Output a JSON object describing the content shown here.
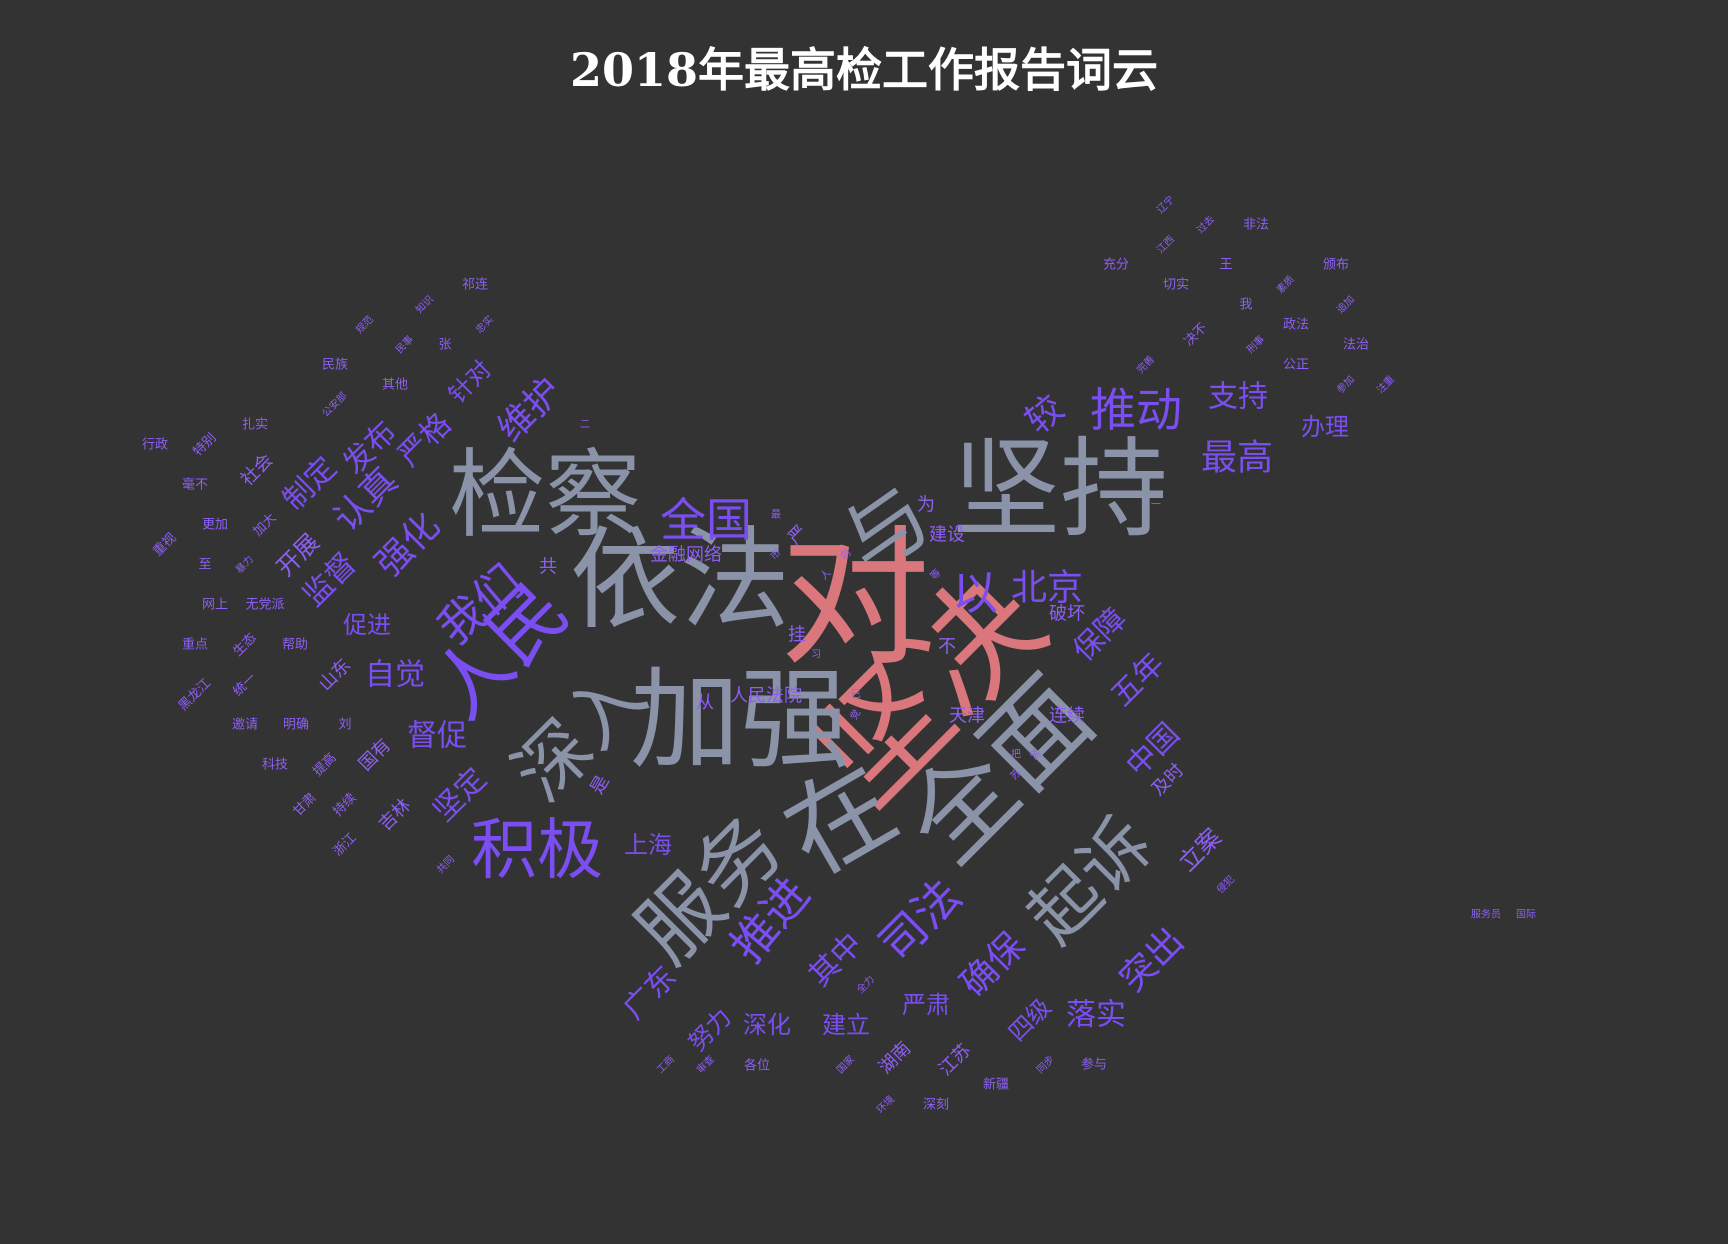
{
  "title": "2018年最高检工作报告词云",
  "colors": {
    "background": "#333333",
    "title": "#ffffff",
    "tier1": "#d9777d",
    "tier2": "#8b93a8",
    "tier3": "#7b4ef2",
    "tier4": "#8e5ff5"
  },
  "chart_data": {
    "type": "wordcloud",
    "title": "2018年最高检工作报告词云",
    "words": [
      {
        "text": "对",
        "weight": 100,
        "color": "#d9777d"
      },
      {
        "text": "坚决",
        "weight": 96,
        "color": "#d9777d"
      },
      {
        "text": "依法",
        "weight": 88,
        "color": "#8b93a8"
      },
      {
        "text": "坚持",
        "weight": 86,
        "color": "#8b93a8"
      },
      {
        "text": "加强",
        "weight": 85,
        "color": "#8b93a8"
      },
      {
        "text": "在",
        "weight": 83,
        "color": "#8b93a8"
      },
      {
        "text": "全面",
        "weight": 80,
        "color": "#8b93a8"
      },
      {
        "text": "检察",
        "weight": 76,
        "color": "#8b93a8"
      },
      {
        "text": "服务",
        "weight": 68,
        "color": "#8b93a8"
      },
      {
        "text": "与",
        "weight": 66,
        "color": "#8b93a8"
      },
      {
        "text": "人民",
        "weight": 64,
        "color": "#7b4ef2"
      },
      {
        "text": "深入",
        "weight": 60,
        "color": "#8b93a8"
      },
      {
        "text": "起诉",
        "weight": 58,
        "color": "#8b93a8"
      },
      {
        "text": "积极",
        "weight": 55,
        "color": "#7b4ef2"
      },
      {
        "text": "推进",
        "weight": 46,
        "color": "#7b4ef2"
      },
      {
        "text": "全国",
        "weight": 46,
        "color": "#7b4ef2"
      },
      {
        "text": "推动",
        "weight": 44,
        "color": "#7b4ef2"
      },
      {
        "text": "以",
        "weight": 44,
        "color": "#7b4ef2"
      },
      {
        "text": "司法",
        "weight": 42,
        "color": "#7b4ef2"
      },
      {
        "text": "我们",
        "weight": 40,
        "color": "#7b4ef2"
      },
      {
        "text": "确保",
        "weight": 38,
        "color": "#7b4ef2"
      },
      {
        "text": "突出",
        "weight": 36,
        "color": "#7b4ef2"
      },
      {
        "text": "强化",
        "weight": 36,
        "color": "#7b4ef2"
      },
      {
        "text": "认真",
        "weight": 35,
        "color": "#7b4ef2"
      },
      {
        "text": "最高",
        "weight": 35,
        "color": "#7b4ef2"
      },
      {
        "text": "维护",
        "weight": 34,
        "color": "#7b4ef2"
      },
      {
        "text": "北京",
        "weight": 33,
        "color": "#7b4ef2"
      },
      {
        "text": "较",
        "weight": 33,
        "color": "#7b4ef2"
      },
      {
        "text": "保障",
        "weight": 30,
        "color": "#7b4ef2"
      },
      {
        "text": "五年",
        "weight": 30,
        "color": "#7b4ef2"
      },
      {
        "text": "中国",
        "weight": 28,
        "color": "#7b4ef2"
      },
      {
        "text": "支持",
        "weight": 28,
        "color": "#7b4ef2"
      },
      {
        "text": "坚定",
        "weight": 28,
        "color": "#7b4ef2"
      },
      {
        "text": "督促",
        "weight": 28,
        "color": "#7b4ef2"
      },
      {
        "text": "落实",
        "weight": 28,
        "color": "#7b4ef2"
      },
      {
        "text": "广东",
        "weight": 28,
        "color": "#7b4ef2"
      },
      {
        "text": "其中",
        "weight": 27,
        "color": "#7b4ef2"
      },
      {
        "text": "自觉",
        "weight": 27,
        "color": "#7b4ef2"
      },
      {
        "text": "监督",
        "weight": 26,
        "color": "#7b4ef2"
      },
      {
        "text": "发布",
        "weight": 26,
        "color": "#7b4ef2"
      },
      {
        "text": "严格",
        "weight": 26,
        "color": "#7b4ef2"
      },
      {
        "text": "制定",
        "weight": 25,
        "color": "#7b4ef2"
      },
      {
        "text": "针对",
        "weight": 24,
        "color": "#7b4ef2"
      },
      {
        "text": "严肃",
        "weight": 24,
        "color": "#7b4ef2"
      },
      {
        "text": "四级",
        "weight": 24,
        "color": "#7b4ef2"
      },
      {
        "text": "努力",
        "weight": 24,
        "color": "#7b4ef2"
      },
      {
        "text": "深化",
        "weight": 23,
        "color": "#7b4ef2"
      },
      {
        "text": "建立",
        "weight": 23,
        "color": "#7b4ef2"
      },
      {
        "text": "促进",
        "weight": 23,
        "color": "#7b4ef2"
      },
      {
        "text": "办理",
        "weight": 22,
        "color": "#7b4ef2"
      },
      {
        "text": "上海",
        "weight": 22,
        "color": "#7b4ef2"
      },
      {
        "text": "开展",
        "weight": 20,
        "color": "#8e5ff5"
      },
      {
        "text": "立案",
        "weight": 20,
        "color": "#8e5ff5"
      },
      {
        "text": "及时",
        "weight": 19,
        "color": "#8e5ff5"
      },
      {
        "text": "湖南",
        "weight": 19,
        "color": "#8e5ff5"
      },
      {
        "text": "江苏",
        "weight": 19,
        "color": "#8e5ff5"
      },
      {
        "text": "共",
        "weight": 19,
        "color": "#8e5ff5"
      },
      {
        "text": "为",
        "weight": 19,
        "color": "#8e5ff5"
      },
      {
        "text": "不",
        "weight": 19,
        "color": "#8e5ff5"
      },
      {
        "text": "严",
        "weight": 19,
        "color": "#8e5ff5"
      },
      {
        "text": "从",
        "weight": 18,
        "color": "#8e5ff5"
      },
      {
        "text": "连续",
        "weight": 18,
        "color": "#8e5ff5"
      },
      {
        "text": "天津",
        "weight": 18,
        "color": "#8e5ff5"
      },
      {
        "text": "破坏",
        "weight": 18,
        "color": "#8e5ff5"
      },
      {
        "text": "吉林",
        "weight": 18,
        "color": "#8e5ff5"
      },
      {
        "text": "国有",
        "weight": 17,
        "color": "#8e5ff5"
      },
      {
        "text": "挂",
        "weight": 17,
        "color": "#8e5ff5"
      },
      {
        "text": "是",
        "weight": 17,
        "color": "#8e5ff5"
      },
      {
        "text": "社会",
        "weight": 17,
        "color": "#8e5ff5"
      },
      {
        "text": "建设",
        "weight": 16,
        "color": "#8e5ff5"
      },
      {
        "text": "金融网络",
        "weight": 16,
        "color": "#8e5ff5"
      },
      {
        "text": "人民法院",
        "weight": 15,
        "color": "#8e5ff5"
      },
      {
        "text": "山东",
        "weight": 15,
        "color": "#8e5ff5"
      },
      {
        "text": "各位",
        "weight": 13,
        "color": "#8e5ff5"
      },
      {
        "text": "新疆",
        "weight": 13,
        "color": "#8e5ff5"
      },
      {
        "text": "深刻",
        "weight": 13,
        "color": "#8e5ff5"
      },
      {
        "text": "参与",
        "weight": 13,
        "color": "#8e5ff5"
      },
      {
        "text": "明确",
        "weight": 13,
        "color": "#8e5ff5"
      },
      {
        "text": "无党派",
        "weight": 12,
        "color": "#8e5ff5"
      },
      {
        "text": "公正",
        "weight": 12,
        "color": "#8e5ff5"
      },
      {
        "text": "政法",
        "weight": 12,
        "color": "#8e5ff5"
      },
      {
        "text": "法治",
        "weight": 12,
        "color": "#8e5ff5"
      },
      {
        "text": "充分",
        "weight": 12,
        "color": "#8e5ff5"
      },
      {
        "text": "切实",
        "weight": 12,
        "color": "#8e5ff5"
      },
      {
        "text": "非法",
        "weight": 12,
        "color": "#8e5ff5"
      },
      {
        "text": "颁布",
        "weight": 12,
        "color": "#8e5ff5"
      },
      {
        "text": "决不",
        "weight": 12,
        "color": "#8e5ff5"
      },
      {
        "text": "祁连",
        "weight": 12,
        "color": "#8e5ff5"
      },
      {
        "text": "民族",
        "weight": 12,
        "color": "#8e5ff5"
      },
      {
        "text": "其他",
        "weight": 12,
        "color": "#8e5ff5"
      },
      {
        "text": "扎实",
        "weight": 12,
        "color": "#8e5ff5"
      },
      {
        "text": "行政",
        "weight": 12,
        "color": "#8e5ff5"
      },
      {
        "text": "特别",
        "weight": 12,
        "color": "#8e5ff5"
      },
      {
        "text": "毫不",
        "weight": 12,
        "color": "#8e5ff5"
      },
      {
        "text": "更加",
        "weight": 12,
        "color": "#8e5ff5"
      },
      {
        "text": "加大",
        "weight": 12,
        "color": "#8e5ff5"
      },
      {
        "text": "重视",
        "weight": 12,
        "color": "#8e5ff5"
      },
      {
        "text": "至",
        "weight": 12,
        "color": "#8e5ff5"
      },
      {
        "text": "网上",
        "weight": 12,
        "color": "#8e5ff5"
      },
      {
        "text": "重点",
        "weight": 12,
        "color": "#8e5ff5"
      },
      {
        "text": "生态",
        "weight": 12,
        "color": "#8e5ff5"
      },
      {
        "text": "帮助",
        "weight": 12,
        "color": "#8e5ff5"
      },
      {
        "text": "黑龙江",
        "weight": 12,
        "color": "#8e5ff5"
      },
      {
        "text": "统一",
        "weight": 12,
        "color": "#8e5ff5"
      },
      {
        "text": "邀请",
        "weight": 12,
        "color": "#8e5ff5"
      },
      {
        "text": "科技",
        "weight": 12,
        "color": "#8e5ff5"
      },
      {
        "text": "提高",
        "weight": 12,
        "color": "#8e5ff5"
      },
      {
        "text": "甘肃",
        "weight": 12,
        "color": "#8e5ff5"
      },
      {
        "text": "持续",
        "weight": 12,
        "color": "#8e5ff5"
      },
      {
        "text": "浙江",
        "weight": 12,
        "color": "#8e5ff5"
      },
      {
        "text": "刘",
        "weight": 12,
        "color": "#8e5ff5"
      },
      {
        "text": "张",
        "weight": 12,
        "color": "#8e5ff5"
      },
      {
        "text": "王",
        "weight": 12,
        "color": "#8e5ff5"
      },
      {
        "text": "我",
        "weight": 12,
        "color": "#8e5ff5"
      },
      {
        "text": "辽宁",
        "weight": 11,
        "color": "#8e5ff5"
      },
      {
        "text": "江西",
        "weight": 11,
        "color": "#8e5ff5"
      },
      {
        "text": "过去",
        "weight": 11,
        "color": "#8e5ff5"
      },
      {
        "text": "追加",
        "weight": 11,
        "color": "#8e5ff5"
      },
      {
        "text": "参加",
        "weight": 11,
        "color": "#8e5ff5"
      },
      {
        "text": "注重",
        "weight": 11,
        "color": "#8e5ff5"
      },
      {
        "text": "刑事",
        "weight": 11,
        "color": "#8e5ff5"
      },
      {
        "text": "素质",
        "weight": 11,
        "color": "#8e5ff5"
      },
      {
        "text": "完善",
        "weight": 11,
        "color": "#8e5ff5"
      },
      {
        "text": "侵犯",
        "weight": 11,
        "color": "#8e5ff5"
      },
      {
        "text": "环境",
        "weight": 11,
        "color": "#8e5ff5"
      },
      {
        "text": "国家",
        "weight": 11,
        "color": "#8e5ff5"
      },
      {
        "text": "同步",
        "weight": 11,
        "color": "#8e5ff5"
      },
      {
        "text": "工商",
        "weight": 11,
        "color": "#8e5ff5"
      },
      {
        "text": "审查",
        "weight": 11,
        "color": "#8e5ff5"
      },
      {
        "text": "共同",
        "weight": 11,
        "color": "#8e5ff5"
      },
      {
        "text": "规范",
        "weight": 11,
        "color": "#8e5ff5"
      },
      {
        "text": "知识",
        "weight": 11,
        "color": "#8e5ff5"
      },
      {
        "text": "民事",
        "weight": 11,
        "color": "#8e5ff5"
      },
      {
        "text": "忠实",
        "weight": 11,
        "color": "#8e5ff5"
      },
      {
        "text": "公安部",
        "weight": 11,
        "color": "#8e5ff5"
      },
      {
        "text": "暴力",
        "weight": 11,
        "color": "#8e5ff5"
      },
      {
        "text": "全力",
        "weight": 11,
        "color": "#8e5ff5"
      },
      {
        "text": "习",
        "weight": 11,
        "color": "#8e5ff5"
      },
      {
        "text": "已",
        "weight": 11,
        "color": "#8e5ff5"
      },
      {
        "text": "把",
        "weight": 11,
        "color": "#8e5ff5"
      },
      {
        "text": "党",
        "weight": 11,
        "color": "#8e5ff5"
      },
      {
        "text": "二",
        "weight": 11,
        "color": "#8e5ff5"
      },
      {
        "text": "一",
        "weight": 11,
        "color": "#8e5ff5"
      },
      {
        "text": "最",
        "weight": 11,
        "color": "#8e5ff5"
      },
      {
        "text": "市",
        "weight": 11,
        "color": "#8e5ff5"
      },
      {
        "text": "人",
        "weight": 11,
        "color": "#8e5ff5"
      },
      {
        "text": "向",
        "weight": 11,
        "color": "#8e5ff5"
      },
      {
        "text": "苏",
        "weight": 11,
        "color": "#8e5ff5"
      },
      {
        "text": "等",
        "weight": 11,
        "color": "#8e5ff5"
      },
      {
        "text": "紧",
        "weight": 11,
        "color": "#8e5ff5"
      },
      {
        "text": "国际",
        "weight": 11,
        "color": "#8e5ff5"
      },
      {
        "text": "服务员",
        "weight": 11,
        "color": "#8e5ff5"
      }
    ]
  }
}
